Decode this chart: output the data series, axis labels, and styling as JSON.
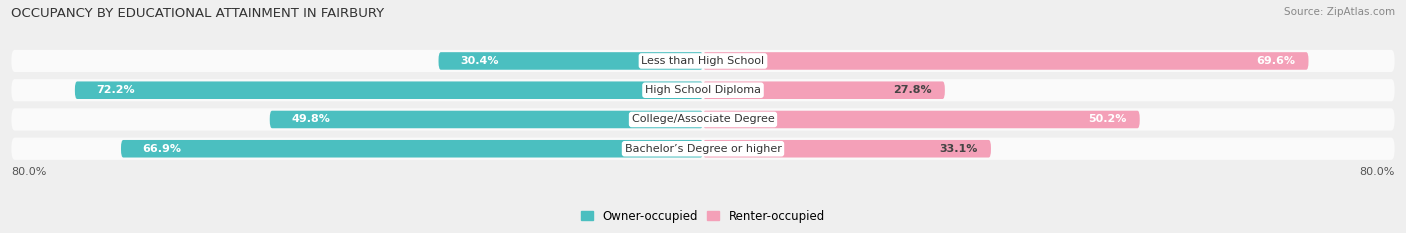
{
  "title": "OCCUPANCY BY EDUCATIONAL ATTAINMENT IN FAIRBURY",
  "source": "Source: ZipAtlas.com",
  "categories": [
    "Less than High School",
    "High School Diploma",
    "College/Associate Degree",
    "Bachelor’s Degree or higher"
  ],
  "owner_pct": [
    30.4,
    72.2,
    49.8,
    66.9
  ],
  "renter_pct": [
    69.6,
    27.8,
    50.2,
    33.1
  ],
  "owner_color": "#4BBFC0",
  "renter_color": "#F4A0B8",
  "bg_color": "#EFEFEF",
  "bar_bg_color": "#FAFAFA",
  "axis_label_left": "80.0%",
  "axis_label_right": "80.0%"
}
